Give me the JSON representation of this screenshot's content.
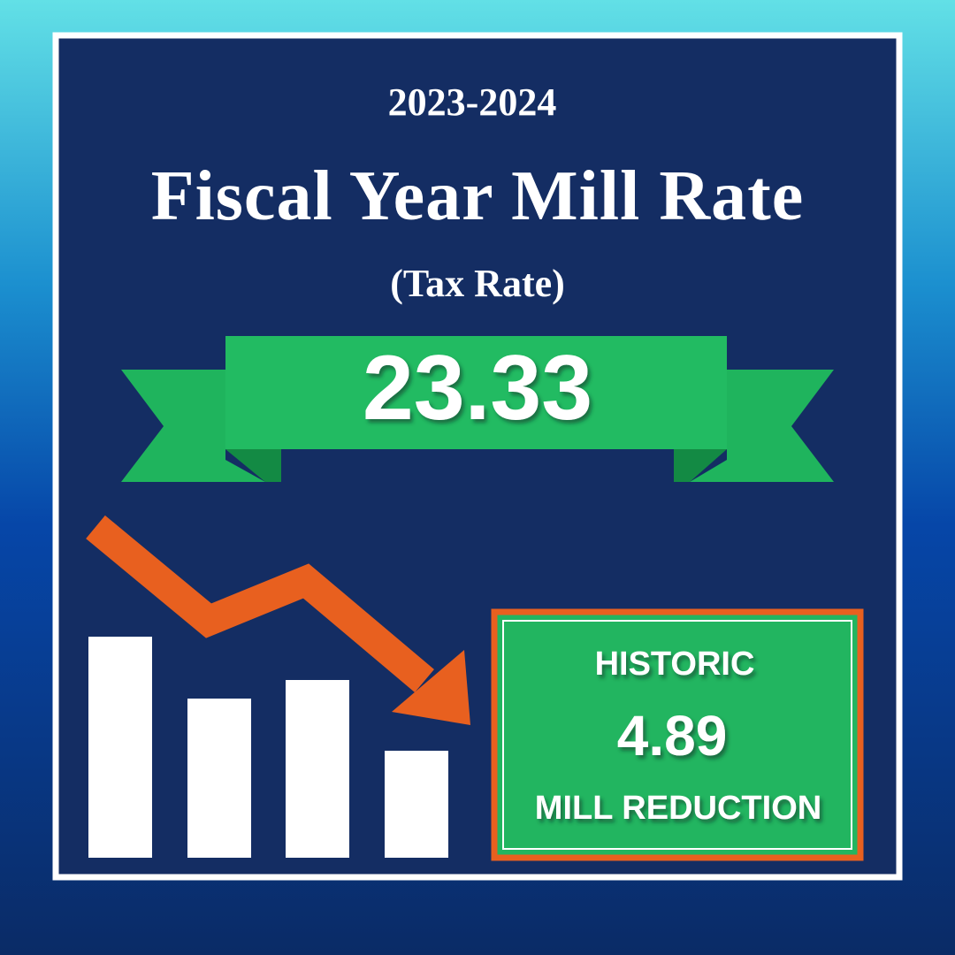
{
  "header": {
    "years": "2023-2024",
    "title": "Fiscal Year Mill Rate",
    "subtitle": "(Tax Rate)"
  },
  "rate": {
    "value": "23.33"
  },
  "callout": {
    "line1": "HISTORIC",
    "amount": "4.89",
    "line2": "MILL REDUCTION"
  }
}
